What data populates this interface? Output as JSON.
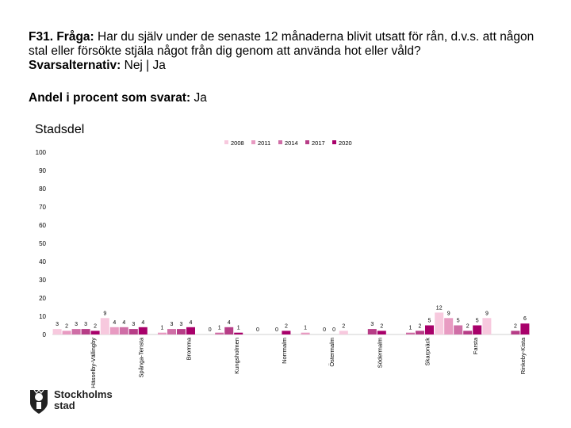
{
  "header": {
    "question_prefix": "F31. Fråga:",
    "question_text": " Har du själv under de senaste 12 månaderna blivit utsatt för rån, d.v.s. att någon stal eller försökte stjäla något från dig genom att använda hot eller våld?",
    "alternatives_prefix": "Svarsalternativ:",
    "alternatives_text": " Nej | Ja",
    "share_prefix": "Andel i procent som svarat:",
    "share_text": " Ja",
    "panel_title": "Stadsdel"
  },
  "logo": {
    "line1": "Stockholms",
    "line2": "stad"
  },
  "colors": {
    "2008": "#f7c9de",
    "2011": "#e89bc2",
    "2014": "#cf6ea6",
    "2017": "#b73d87",
    "2020": "#a8006a"
  },
  "chart_data": {
    "type": "bar",
    "title": "",
    "xlabel": "",
    "ylabel": "",
    "ylim": [
      0,
      100
    ],
    "yticks": [
      0,
      10,
      20,
      30,
      40,
      50,
      60,
      70,
      80,
      90,
      100
    ],
    "legend_position": "top-center",
    "grid": false,
    "categories": [
      "Hässelby-Vällingby",
      "Spånga-Tensta",
      "Bromma",
      "Kungsholmen",
      "Norrmalm",
      "Östermalm",
      "Södermalm",
      "Skarpnäck",
      "Farsta",
      "Rinkeby-Kista"
    ],
    "category_labels": [
      "Hässelby-Vällingby",
      "Spånga-Tensta",
      "Bromma",
      "Kungsholmen",
      "Norrmalm",
      "Östermalm",
      "Södermalm",
      "Skarpnäck",
      "Farsta",
      "Rinkeby-Kista"
    ],
    "series": [
      {
        "name": "2008",
        "values": [
          3,
          9,
          null,
          null,
          null,
          null,
          2,
          null,
          12,
          9
        ]
      },
      {
        "name": "2011",
        "values": [
          2,
          4,
          1,
          0,
          0,
          1,
          null,
          null,
          9,
          null
        ]
      },
      {
        "name": "2014",
        "values": [
          3,
          4,
          3,
          1,
          null,
          null,
          null,
          1,
          5,
          null
        ]
      },
      {
        "name": "2017",
        "values": [
          3,
          3,
          3,
          4,
          0,
          0,
          3,
          2,
          2,
          2
        ]
      },
      {
        "name": "2020",
        "values": [
          2,
          4,
          4,
          1,
          2,
          0,
          2,
          5,
          5,
          6
        ]
      }
    ]
  }
}
